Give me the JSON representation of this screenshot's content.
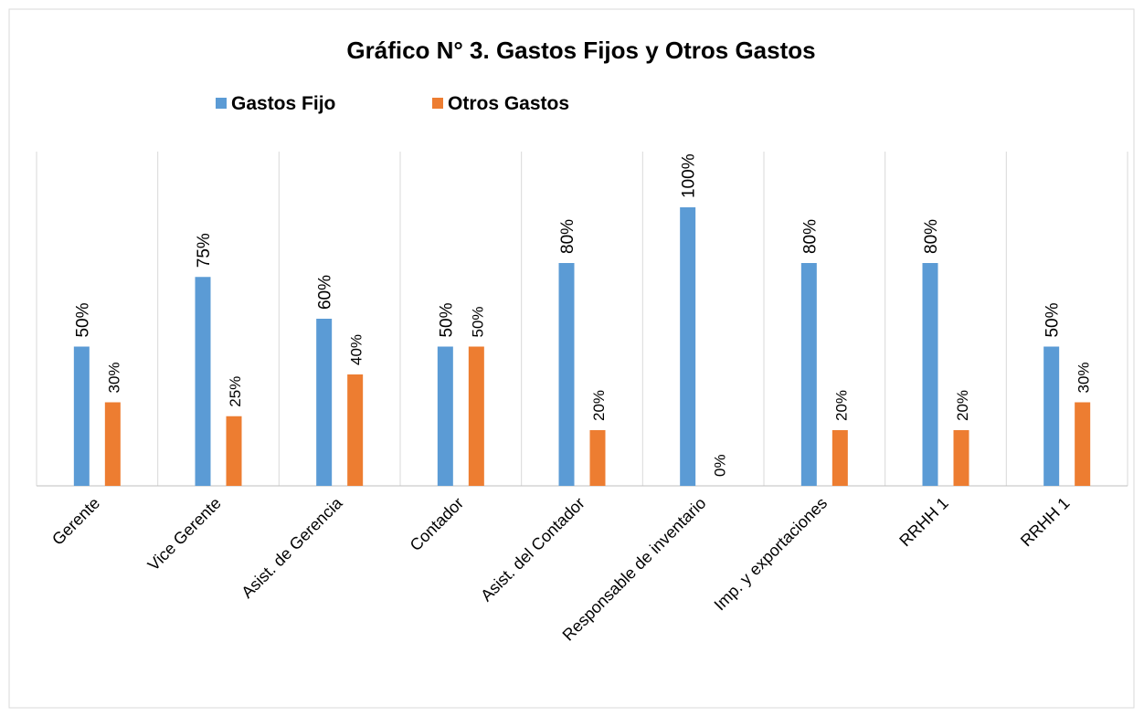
{
  "chart_data": {
    "type": "bar",
    "title": "Gráfico N° 3. Gastos Fijos y Otros Gastos",
    "categories": [
      "Gerente",
      "Vice Gerente",
      "Asist. de Gerencia",
      "Contador",
      "Asist. del Contador",
      "Responsable de inventario",
      "Imp. y exportaciones",
      "RRHH 1",
      "RRHH 1"
    ],
    "series": [
      {
        "name": "Gastos Fijo",
        "color": "#5b9bd5",
        "values": [
          50,
          75,
          60,
          50,
          80,
          100,
          80,
          80,
          50
        ],
        "value_labels": [
          "50%",
          "75%",
          "60%",
          "50%",
          "80%",
          "100%",
          "80%",
          "80%",
          "50%"
        ]
      },
      {
        "name": "Otros Gastos",
        "color": "#ed7d31",
        "values": [
          30,
          25,
          40,
          50,
          20,
          0,
          20,
          20,
          30
        ],
        "value_labels": [
          "30%",
          "25%",
          "40%",
          "50%",
          "20%",
          "0%",
          "20%",
          "20%",
          "30%"
        ]
      }
    ],
    "ylim": [
      0,
      120
    ],
    "grid": true,
    "legend": "top"
  }
}
